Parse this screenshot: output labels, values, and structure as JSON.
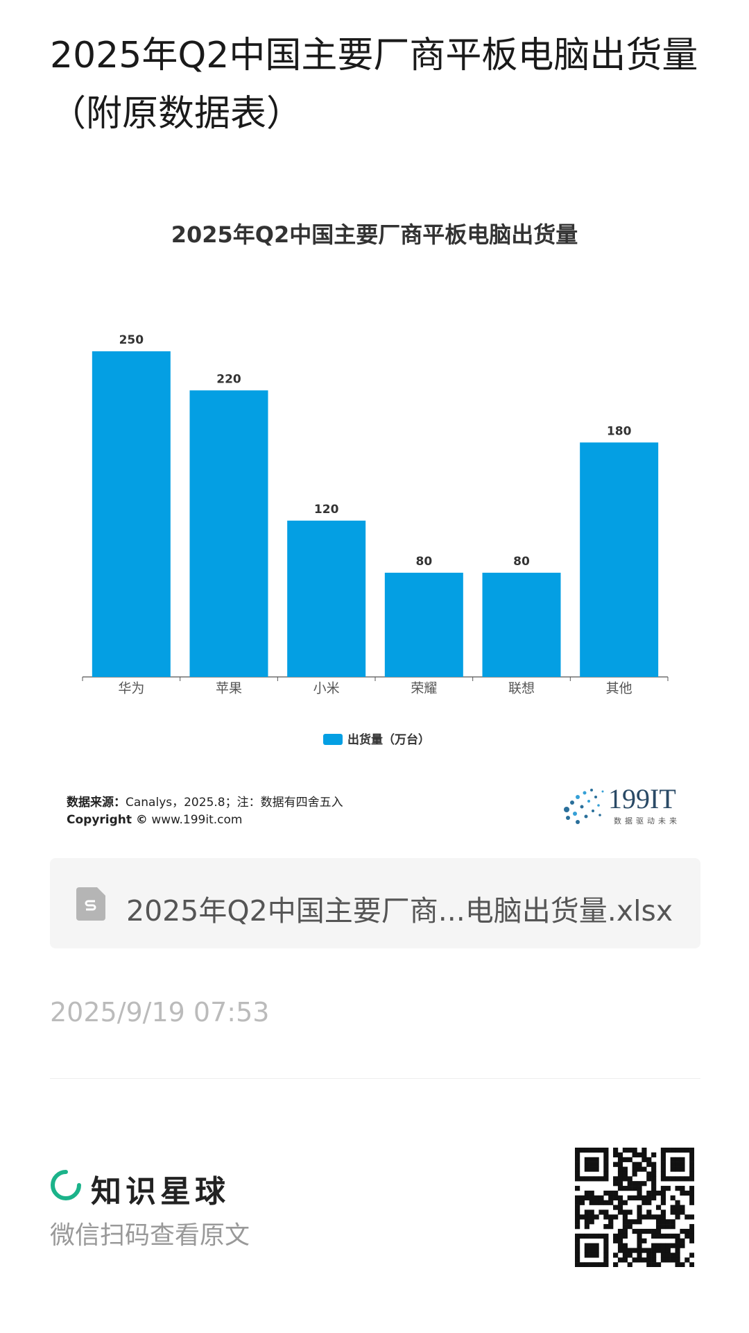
{
  "header": {
    "title": "2025年Q2中国主要厂商平板电脑出货量（附原数据表）"
  },
  "chart_data": {
    "type": "bar",
    "title": "2025年Q2中国主要厂商平板电脑出货量",
    "categories": [
      "华为",
      "苹果",
      "小米",
      "荣耀",
      "联想",
      "其他"
    ],
    "series": [
      {
        "name": "出货量（万台）",
        "color": "#049fe3",
        "values": [
          250,
          220,
          120,
          80,
          80,
          180
        ]
      }
    ],
    "legend": "bottom"
  },
  "source": {
    "label": "数据来源：",
    "text": "Canalys，2025.8；注：数据有四舍五入",
    "copyright": "Copyright ©",
    "site": "www.199it.com"
  },
  "logo": {
    "name": "199IT",
    "slogan": "数据驱动未来"
  },
  "attachment": {
    "file_name": "2025年Q2中国主要厂商...电脑出货量.xlsx"
  },
  "date": "2025/9/19 07:53",
  "footer": {
    "brand": "知识星球",
    "hint": "微信扫码查看原文"
  }
}
